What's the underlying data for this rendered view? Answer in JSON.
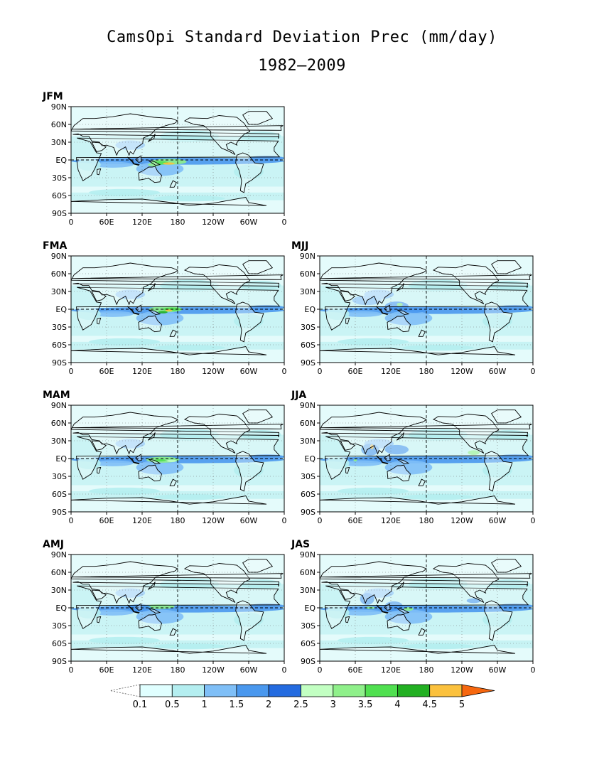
{
  "title": "CamsOpi Standard Deviation Prec (mm/day)",
  "subtitle": "1982–2009",
  "y_ticks": [
    "90N",
    "60N",
    "30N",
    "EQ",
    "30S",
    "60S",
    "90S"
  ],
  "x_ticks": [
    "0",
    "60E",
    "120E",
    "180",
    "120W",
    "60W",
    "0"
  ],
  "panels": [
    {
      "label": "JFM"
    },
    {
      "label": "FMA"
    },
    {
      "label": "MJJ"
    },
    {
      "label": "MAM"
    },
    {
      "label": "JJA"
    },
    {
      "label": "AMJ"
    },
    {
      "label": "JAS"
    }
  ],
  "colorbar": {
    "labels": [
      "0.1",
      "0.5",
      "1",
      "1.5",
      "2",
      "2.5",
      "3",
      "3.5",
      "4",
      "4.5",
      "5"
    ],
    "colors": [
      "#e0ffff",
      "#b4eef0",
      "#7fbff7",
      "#4a98ee",
      "#246be0",
      "#c2ffc2",
      "#8ff08a",
      "#50e050",
      "#22b022",
      "#fbc13d",
      "#f6670f"
    ]
  },
  "colors": {
    "ocean": "#e4fbfb",
    "land": "#f4fdfd",
    "border": "#000000"
  }
}
